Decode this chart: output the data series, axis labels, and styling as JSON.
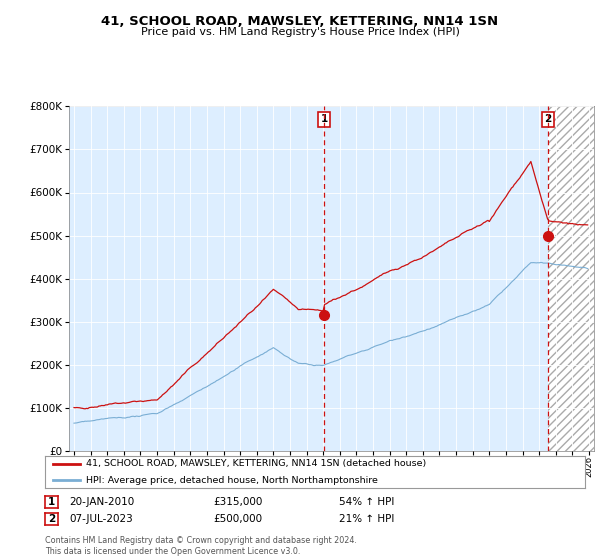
{
  "title": "41, SCHOOL ROAD, MAWSLEY, KETTERING, NN14 1SN",
  "subtitle": "Price paid vs. HM Land Registry's House Price Index (HPI)",
  "legend_line1": "41, SCHOOL ROAD, MAWSLEY, KETTERING, NN14 1SN (detached house)",
  "legend_line2": "HPI: Average price, detached house, North Northamptonshire",
  "annotation1_label": "1",
  "annotation1_date": "20-JAN-2010",
  "annotation1_price": "£315,000",
  "annotation1_pct": "54% ↑ HPI",
  "annotation2_label": "2",
  "annotation2_date": "07-JUL-2023",
  "annotation2_price": "£500,000",
  "annotation2_pct": "21% ↑ HPI",
  "footer": "Contains HM Land Registry data © Crown copyright and database right 2024.\nThis data is licensed under the Open Government Licence v3.0.",
  "hpi_color": "#7aaed4",
  "price_color": "#cc1111",
  "annotation_color": "#cc1111",
  "plot_bg_color": "#ddeeff",
  "ylim": [
    0,
    800000
  ],
  "yticks": [
    0,
    100000,
    200000,
    300000,
    400000,
    500000,
    600000,
    700000,
    800000
  ],
  "sale1_x": 2010.05,
  "sale1_y": 315000,
  "sale2_x": 2023.53,
  "sale2_y": 500000,
  "vline1_x": 2010.05,
  "vline2_x": 2023.53,
  "xmin": 1994.7,
  "xmax": 2026.3
}
